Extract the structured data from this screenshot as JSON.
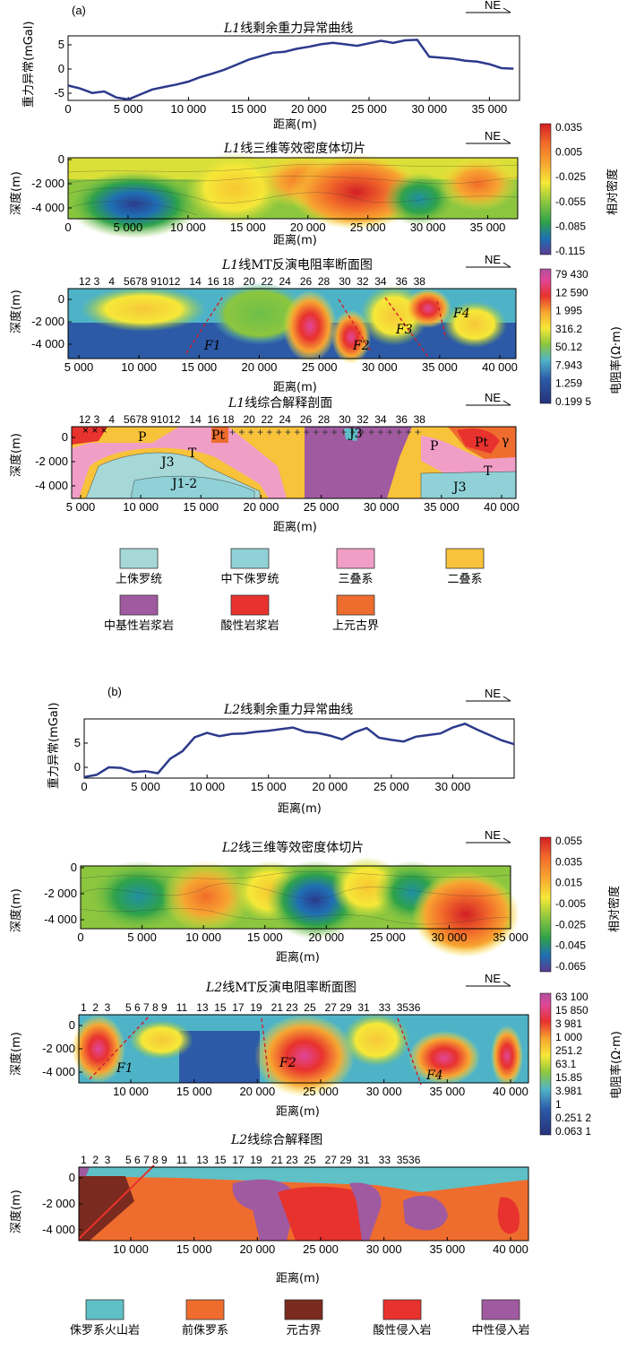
{
  "panel_a": {
    "label": "(a)",
    "ne": "NE",
    "gravity": {
      "title_line": "L1",
      "title_rest": "线剩余重力异常曲线",
      "ylabel": "重力异常(mGal)",
      "xlabel": "距离(m)",
      "yticks": [
        "5",
        "0",
        "-5"
      ],
      "xticks": [
        "0",
        "5 000",
        "10 000",
        "15 000",
        "20 000",
        "25 000",
        "30 000",
        "35 000"
      ]
    },
    "density": {
      "title_line": "L1",
      "title_rest": "线三维等效密度体切片",
      "ylabel": "深度(m)",
      "xlabel": "距离(m)",
      "yticks": [
        "0",
        "-2 000",
        "-4 000"
      ],
      "xticks": [
        "0",
        "5 000",
        "10 000",
        "15 000",
        "20 000",
        "25 000",
        "30 000",
        "35 000"
      ],
      "cbar_label": "相对密度",
      "cbar_ticks": [
        "0.035",
        "0.005",
        "-0.025",
        "-0.055",
        "-0.085",
        "-0.115"
      ]
    },
    "mt": {
      "title_line": "L1",
      "title_rest": "线MT反演电阻率断面图",
      "ylabel": "深度(m)",
      "xlabel": "距离(m)",
      "yticks": [
        "0",
        "-2 000",
        "-4 000"
      ],
      "xticks": [
        "5 000",
        "10 000",
        "15 000",
        "20 000",
        "25 000",
        "30 000",
        "35 000",
        "40 000"
      ],
      "stations": "12 3   4   5678 91012   14  16 18   20  22  24   26  28   30  32  34   36  38",
      "faults": [
        "F1",
        "F2",
        "F3",
        "F4"
      ],
      "cbar_label": "电阻率(Ω·m)",
      "cbar_ticks": [
        "79 430",
        "12 590",
        "1 995",
        "316.2",
        "50.12",
        "7.943",
        "1.259",
        "0.199 5"
      ]
    },
    "interp": {
      "title_line": "L1",
      "title_rest": "线综合解释剖面",
      "ylabel": "深度(m)",
      "xlabel": "距离(m)",
      "yticks": [
        "0",
        "-2 000",
        "-4 000"
      ],
      "xticks": [
        "5 000",
        "10 000",
        "15 000",
        "20 000",
        "25 000",
        "30 000",
        "35 000",
        "40 000"
      ],
      "stations": "12 3   4   5678 91012   14  16 18   20  22  24   26  28   30  32  34   36  38",
      "units": [
        "P",
        "T",
        "Pt",
        "J3",
        "J1-2",
        "J3",
        "P",
        "Pt",
        "T",
        "J3",
        "γ"
      ]
    },
    "legend": [
      "上侏罗统",
      "中下侏罗统",
      "三叠系",
      "二叠系",
      "中基性岩浆岩",
      "酸性岩浆岩",
      "上元古界"
    ],
    "legend_colors": [
      "#a6d8d8",
      "#8fd1d6",
      "#f19ec7",
      "#f8c23a",
      "#a05aa0",
      "#e8322e",
      "#ee6d2e"
    ]
  },
  "panel_b": {
    "label": "(b)",
    "ne": "NE",
    "gravity": {
      "title_line": "L2",
      "title_rest": "线剩余重力异常曲线",
      "ylabel": "重力异常(mGal)",
      "xlabel": "距离(m)",
      "yticks": [
        "5",
        "0"
      ],
      "xticks": [
        "0",
        "5 000",
        "10 000",
        "15 000",
        "20 000",
        "25 000",
        "30 000"
      ]
    },
    "density": {
      "title_line": "L2",
      "title_rest": "线三维等效密度体切片",
      "ylabel": "深度(m)",
      "xlabel": "距离(m)",
      "yticks": [
        "0",
        "-2 000",
        "-4 000"
      ],
      "xticks": [
        "0",
        "5 000",
        "10 000",
        "15 000",
        "20 000",
        "25 000",
        "30 000",
        "35 000"
      ],
      "cbar_label": "相对密度",
      "cbar_ticks": [
        "0.055",
        "0.035",
        "0.015",
        "-0.005",
        "-0.025",
        "-0.045",
        "-0.065"
      ]
    },
    "mt": {
      "title_line": "L2",
      "title_rest": "线MT反演电阻率断面图",
      "ylabel": "深度(m)",
      "xlabel": "距离(m)",
      "yticks": [
        "0",
        "-2 000",
        "-4 000"
      ],
      "xticks": [
        "10 000",
        "15 000",
        "20 000",
        "25 000",
        "30 000",
        "35 000",
        "40 000"
      ],
      "stations": "1  2  3     5 6 7 8 9   11   13  15  17  19   21 23  25   27 29  31   33  3536",
      "faults": [
        "F1",
        "F2",
        "F4"
      ],
      "cbar_label": "电阻率(Ω·m)",
      "cbar_ticks": [
        "63 100",
        "15 850",
        "3 981",
        "1 000",
        "251.2",
        "63.1",
        "15.85",
        "3.981",
        "1",
        "0.251 2",
        "0.063 1"
      ]
    },
    "interp": {
      "title_line": "L2",
      "title_rest": "线综合解释图",
      "ylabel": "深度(m)",
      "xlabel": "距离(m)",
      "yticks": [
        "0",
        "-2 000",
        "-4 000"
      ],
      "xticks": [
        "10 000",
        "15 000",
        "20 000",
        "25 000",
        "30 000",
        "35 000",
        "40 000"
      ],
      "stations": "1  2  3     5 6 7 8 9   11   13  15  17  19   21 23  25   27 29  31   33  3536"
    },
    "legend": [
      "侏罗系火山岩",
      "前侏罗系",
      "元古界",
      "酸性侵入岩",
      "中性侵入岩"
    ],
    "legend_colors": [
      "#5fc0c6",
      "#ee6d2e",
      "#7a2a1e",
      "#e8322e",
      "#a05aa0"
    ]
  },
  "chart_data": [
    {
      "type": "line",
      "title": "L1线剩余重力异常曲线",
      "xlabel": "距离(m)",
      "ylabel": "重力异常(mGal)",
      "xlim": [
        0,
        37500
      ],
      "ylim": [
        -6,
        7
      ],
      "x": [
        0,
        1000,
        2000,
        3000,
        4000,
        5000,
        6000,
        7000,
        8000,
        9000,
        10000,
        11000,
        12000,
        13000,
        14000,
        15000,
        16000,
        17000,
        18000,
        19000,
        20000,
        21000,
        22000,
        23000,
        24000,
        25000,
        26000,
        27000,
        28000,
        29000,
        30000,
        31000,
        32000,
        33000,
        34000,
        35000,
        36000,
        37000
      ],
      "series": [
        {
          "values": [
            -3,
            -3.6,
            -4.5,
            -4.2,
            -5.4,
            -5.8,
            -4.8,
            -3.8,
            -3.3,
            -2.8,
            -2.2,
            -1.3,
            -0.6,
            0.2,
            1.2,
            2.2,
            2.9,
            3.6,
            3.8,
            4.4,
            4.8,
            5.3,
            5.6,
            5.3,
            5.0,
            5.5,
            6.0,
            5.6,
            6.1,
            6.2,
            2.8,
            2.6,
            2.4,
            2.0,
            1.8,
            1.3,
            0.5,
            0.4
          ]
        }
      ]
    },
    {
      "type": "line",
      "title": "L2线剩余重力异常曲线",
      "xlabel": "距离(m)",
      "ylabel": "重力异常(mGal)",
      "xlim": [
        0,
        35000
      ],
      "ylim": [
        -1,
        10
      ],
      "x": [
        0,
        1000,
        2000,
        3000,
        4000,
        5000,
        6000,
        7000,
        8000,
        9000,
        10000,
        11000,
        12000,
        13000,
        14000,
        15000,
        16000,
        17000,
        18000,
        19000,
        20000,
        21000,
        22000,
        23000,
        24000,
        25000,
        26000,
        27000,
        28000,
        29000,
        30000,
        31000,
        32000,
        33000,
        34000,
        35000
      ],
      "series": [
        {
          "values": [
            -0.8,
            -0.4,
            1.0,
            0.9,
            0.1,
            0.3,
            -0.1,
            2.6,
            4.0,
            6.6,
            7.4,
            6.8,
            7.2,
            7.3,
            7.6,
            7.8,
            8.1,
            8.4,
            7.6,
            7.4,
            6.9,
            6.2,
            7.5,
            8.3,
            6.5,
            6.1,
            5.8,
            6.7,
            7.0,
            7.3,
            8.4,
            9.1,
            8.0,
            7.0,
            6.0,
            5.3
          ]
        }
      ]
    }
  ]
}
